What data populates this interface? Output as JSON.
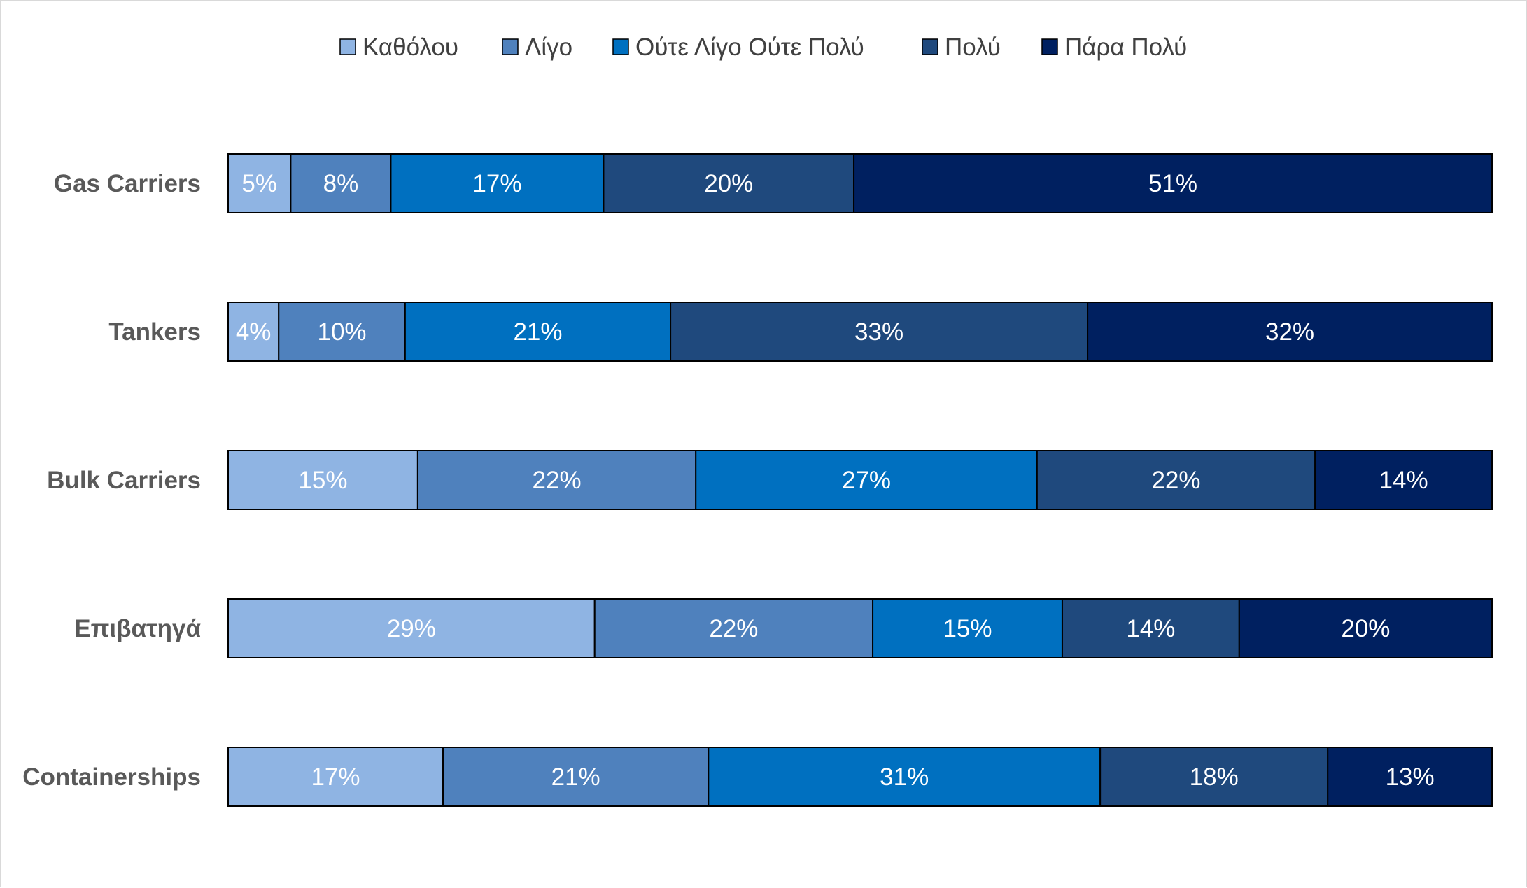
{
  "chart_data": {
    "type": "bar",
    "orientation": "horizontal",
    "stacked": true,
    "percent_stacked": true,
    "title": "",
    "xlabel": "",
    "ylabel": "",
    "xlim": [
      0,
      100
    ],
    "grid": false,
    "legend_position": "top",
    "categories": [
      "Gas Carriers",
      "Tankers",
      "Bulk Carriers",
      "Επιβατηγά",
      "Containerships"
    ],
    "series": [
      {
        "name": "Καθόλου",
        "color": "#8FB4E3",
        "values": [
          5,
          4,
          15,
          29,
          17
        ],
        "labels": [
          "5%",
          "4%",
          "15%",
          "29%",
          "17%"
        ]
      },
      {
        "name": "Λίγο",
        "color": "#4F81BD",
        "values": [
          8,
          10,
          22,
          22,
          21
        ],
        "labels": [
          "8%",
          "10%",
          "22%",
          "22%",
          "21%"
        ]
      },
      {
        "name": "Ούτε Λίγο Ούτε Πολύ",
        "color": "#0070C0",
        "values": [
          17,
          21,
          27,
          15,
          31
        ],
        "labels": [
          "17%",
          "21%",
          "27%",
          "15%",
          "31%"
        ]
      },
      {
        "name": "Πολύ",
        "color": "#1F497D",
        "values": [
          20,
          33,
          22,
          14,
          18
        ],
        "labels": [
          "20%",
          "33%",
          "22%",
          "14%",
          "18%"
        ]
      },
      {
        "name": "Πάρα Πολύ",
        "color": "#002060",
        "values": [
          51,
          32,
          14,
          20,
          13
        ],
        "labels": [
          "51%",
          "32%",
          "14%",
          "20%",
          "13%"
        ]
      }
    ]
  }
}
